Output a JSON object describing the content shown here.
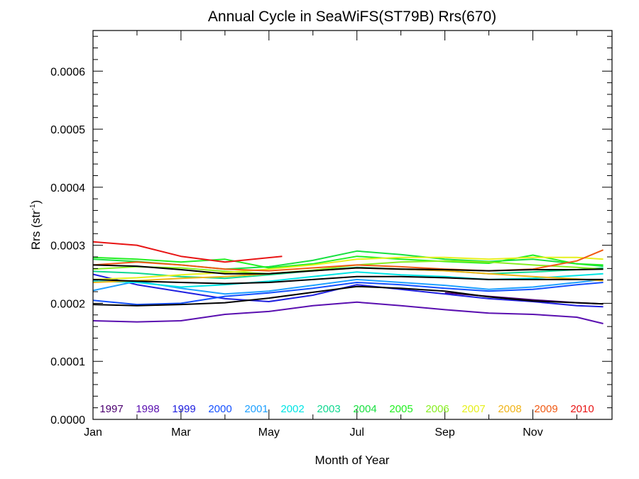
{
  "chart_data": {
    "type": "line",
    "title": "Annual Cycle in SeaWiFS(ST79B) Rrs(670)",
    "xlabel": "Month of Year",
    "ylabel_main": "Rrs (str",
    "ylabel_sup": "-1",
    "ylabel_close": ")",
    "xlim": [
      1,
      12.8
    ],
    "ylim": [
      0,
      0.00067
    ],
    "x_ticks": [
      {
        "value": 1,
        "label": "Jan"
      },
      {
        "value": 3,
        "label": "Mar"
      },
      {
        "value": 5,
        "label": "May"
      },
      {
        "value": 7,
        "label": "Jul"
      },
      {
        "value": 9,
        "label": "Sep"
      },
      {
        "value": 11,
        "label": "Nov"
      }
    ],
    "y_ticks": [
      {
        "value": 0,
        "label": "0.0000"
      },
      {
        "value": 0.0001,
        "label": "0.0001"
      },
      {
        "value": 0.0002,
        "label": "0.0002"
      },
      {
        "value": 0.0003,
        "label": "0.0003"
      },
      {
        "value": 0.0004,
        "label": "0.0004"
      },
      {
        "value": 0.0005,
        "label": "0.0005"
      },
      {
        "value": 0.0006,
        "label": "0.0006"
      }
    ],
    "grid": false,
    "legend_position": "bottom",
    "series": [
      {
        "name": "1997",
        "color": "#4b0070",
        "x": [
          9,
          10,
          11,
          12,
          12.6
        ],
        "y": [
          0.000218,
          0.000212,
          0.000206,
          0.000201,
          0.000199
        ]
      },
      {
        "name": "1998",
        "color": "#5a0fb0",
        "x": [
          1,
          2,
          3,
          4,
          5,
          6,
          7,
          8,
          9,
          10,
          11,
          12,
          12.6
        ],
        "y": [
          0.00017,
          0.000168,
          0.00017,
          0.000181,
          0.000186,
          0.000196,
          0.000202,
          0.000196,
          0.000189,
          0.000183,
          0.000181,
          0.000176,
          0.000165
        ]
      },
      {
        "name": "1999",
        "color": "#2020e0",
        "x": [
          1,
          2,
          3,
          4,
          5,
          6,
          7,
          8,
          9,
          10,
          11,
          12,
          12.6
        ],
        "y": [
          0.00025,
          0.000232,
          0.00022,
          0.000208,
          0.000203,
          0.000214,
          0.000232,
          0.000224,
          0.000216,
          0.000208,
          0.000203,
          0.000196,
          0.000194
        ]
      },
      {
        "name": "2000",
        "color": "#1450ff",
        "x": [
          1,
          2,
          3,
          4,
          5,
          6,
          7,
          8,
          9,
          10,
          11,
          12,
          12.6
        ],
        "y": [
          0.000205,
          0.000198,
          0.0002,
          0.000212,
          0.000218,
          0.000226,
          0.000236,
          0.000232,
          0.000226,
          0.000221,
          0.000224,
          0.000232,
          0.000236
        ]
      },
      {
        "name": "2001",
        "color": "#1ea0ff",
        "x": [
          1,
          2,
          3,
          4,
          5,
          6,
          7,
          8,
          9,
          10,
          11,
          12,
          12.6
        ],
        "y": [
          0.000222,
          0.000238,
          0.000226,
          0.000216,
          0.000221,
          0.000231,
          0.000241,
          0.000236,
          0.000231,
          0.000224,
          0.000228,
          0.000236,
          0.000241
        ]
      },
      {
        "name": "2002",
        "color": "#00e5e5",
        "x": [
          1,
          2,
          3,
          4,
          5,
          6,
          7,
          8,
          9,
          10,
          11,
          12,
          12.6
        ],
        "y": [
          0.000238,
          0.000236,
          0.000228,
          0.000232,
          0.000238,
          0.000246,
          0.000254,
          0.000249,
          0.000246,
          0.000241,
          0.000243,
          0.000248,
          0.000251
        ]
      },
      {
        "name": "2003",
        "color": "#10d890",
        "x": [
          1,
          2,
          3,
          4,
          5,
          6,
          7,
          8,
          9,
          10,
          11,
          12,
          12.6
        ],
        "y": [
          0.000255,
          0.000252,
          0.000246,
          0.000243,
          0.000249,
          0.000256,
          0.000262,
          0.000259,
          0.000256,
          0.000251,
          0.000254,
          0.000258,
          0.000261
        ]
      },
      {
        "name": "2004",
        "color": "#18e040",
        "x": [
          1,
          2,
          3,
          4,
          5,
          6,
          7,
          8,
          9,
          10,
          11,
          12,
          12.6
        ],
        "y": [
          0.000276,
          0.000272,
          0.000266,
          0.000259,
          0.000263,
          0.000274,
          0.00029,
          0.000284,
          0.000276,
          0.000272,
          0.000276,
          0.000268,
          0.000264
        ]
      },
      {
        "name": "2005",
        "color": "#22f022",
        "x": [
          1,
          2,
          3,
          4,
          5,
          6,
          7,
          8,
          9,
          10,
          11,
          12,
          12.6
        ],
        "y": [
          0.000279,
          0.000276,
          0.000271,
          0.000276,
          0.000261,
          0.000268,
          0.000281,
          0.000276,
          0.000272,
          0.000269,
          0.000283,
          0.000268,
          0.000266
        ]
      },
      {
        "name": "2006",
        "color": "#88ee22",
        "x": [
          1,
          2,
          3,
          4,
          5,
          6,
          7,
          8,
          9,
          10,
          11,
          12,
          12.6
        ],
        "y": [
          0.000259,
          0.000263,
          0.000261,
          0.000255,
          0.000251,
          0.000257,
          0.000266,
          0.000271,
          0.000273,
          0.000271,
          0.000266,
          0.000262,
          0.000259
        ]
      },
      {
        "name": "2007",
        "color": "#e6f01e",
        "x": [
          1,
          2,
          3,
          4,
          5,
          6,
          7,
          8,
          9,
          10,
          11,
          12,
          12.6
        ],
        "y": [
          0.000241,
          0.000244,
          0.000249,
          0.000253,
          0.000259,
          0.000266,
          0.000276,
          0.000279,
          0.000279,
          0.000276,
          0.000279,
          0.000279,
          0.000276
        ]
      },
      {
        "name": "2008",
        "color": "#f0b418",
        "x": [
          1,
          2,
          3,
          4,
          5,
          6,
          7,
          8,
          9,
          10,
          11,
          12,
          12.6
        ],
        "y": [
          0.000236,
          0.000239,
          0.000243,
          0.000246,
          0.000251,
          0.000256,
          0.000261,
          0.000259,
          0.000256,
          0.000251,
          0.000246,
          0.000242,
          0.000239
        ]
      },
      {
        "name": "2009",
        "color": "#f05a14",
        "x": [
          1,
          2,
          3,
          4,
          5,
          6,
          7,
          8,
          9,
          10,
          11,
          12,
          12.6
        ],
        "y": [
          0.000266,
          0.000271,
          0.000266,
          0.000259,
          0.000256,
          0.000261,
          0.000266,
          0.000263,
          0.000259,
          0.000256,
          0.000259,
          0.000273,
          0.000292
        ]
      },
      {
        "name": "2010",
        "color": "#e81414",
        "x": [
          1,
          2,
          3,
          4,
          5.3
        ],
        "y": [
          0.000306,
          0.0003,
          0.000281,
          0.000271,
          0.000281
        ]
      },
      {
        "name": "",
        "color": "#000000",
        "x": [
          1,
          2,
          3,
          4,
          5,
          6,
          7,
          8,
          9,
          10,
          11,
          12,
          12.6
        ],
        "y": [
          0.000241,
          0.000238,
          0.000236,
          0.000234,
          0.000236,
          0.000241,
          0.000246,
          0.000246,
          0.000244,
          0.000241,
          0.000241,
          0.000241,
          0.000241
        ]
      },
      {
        "name": "",
        "color": "#000000",
        "x": [
          1,
          2,
          3,
          4,
          5,
          6,
          7,
          8,
          9,
          10,
          11,
          12,
          12.6
        ],
        "y": [
          0.000266,
          0.000264,
          0.000258,
          0.000251,
          0.000251,
          0.000256,
          0.000261,
          0.000259,
          0.000258,
          0.000256,
          0.000258,
          0.000258,
          0.000259
        ]
      },
      {
        "name": "",
        "color": "#000000",
        "x": [
          1,
          2,
          3,
          4,
          5,
          6,
          7,
          8,
          9,
          10,
          11,
          12,
          12.6
        ],
        "y": [
          0.000198,
          0.000196,
          0.000198,
          0.000201,
          0.000209,
          0.000219,
          0.000229,
          0.000226,
          0.000221,
          0.000211,
          0.000204,
          0.000201,
          0.000199
        ]
      }
    ]
  }
}
